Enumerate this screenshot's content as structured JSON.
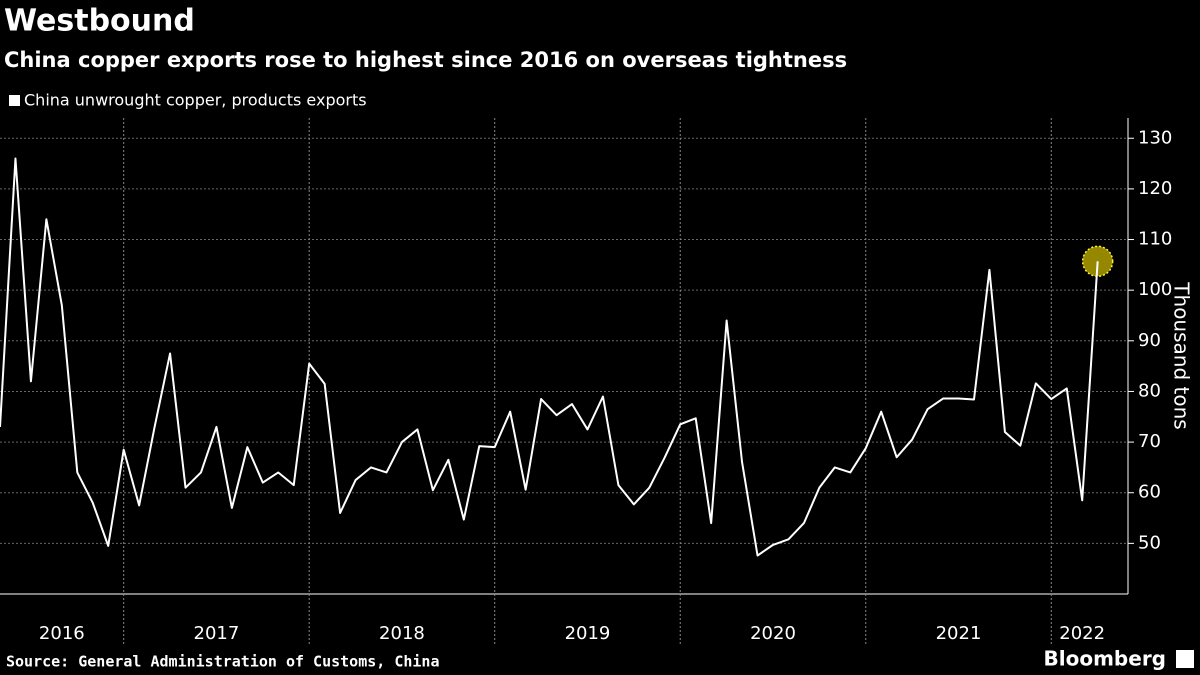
{
  "chart_data": {
    "type": "line",
    "title": "Westbound",
    "subtitle": "China copper exports rose to highest since 2016 on overseas tightness",
    "y_label": "Thousand tons",
    "source": "Source: General Administration of Customs, China",
    "brand": "Bloomberg",
    "categories": [
      null,
      null,
      null,
      null,
      "2016",
      null,
      null,
      null,
      null,
      null,
      null,
      null,
      null,
      null,
      "2017",
      null,
      null,
      null,
      null,
      null,
      null,
      null,
      null,
      null,
      null,
      null,
      "2018",
      null,
      null,
      null,
      null,
      null,
      null,
      null,
      null,
      null,
      null,
      null,
      "2019",
      null,
      null,
      null,
      null,
      null,
      null,
      null,
      null,
      null,
      null,
      null,
      "2020",
      null,
      null,
      null,
      null,
      null,
      null,
      null,
      null,
      null,
      null,
      null,
      "2021",
      null,
      null,
      null,
      null,
      null,
      null,
      null,
      "2022",
      null
    ],
    "series": [
      {
        "name": "China unwrought copper, products exports",
        "color": "#ffffff",
        "values": [
          73,
          126,
          82,
          114,
          97,
          64,
          58,
          49.5,
          68.5,
          57.5,
          73,
          87.5,
          61,
          64,
          73,
          57,
          69,
          62,
          64,
          61.5,
          85.5,
          81.5,
          56,
          62.5,
          65,
          64,
          70,
          72.5,
          60.5,
          66.5,
          54.7,
          69.2,
          69,
          76,
          60.6,
          78.5,
          75.3,
          77.5,
          72.5,
          79,
          61.5,
          57.7,
          61,
          67,
          73.5,
          74.7,
          54,
          94,
          66,
          47.6,
          49.7,
          50.8,
          54,
          61,
          65,
          64,
          68.8,
          76,
          67,
          70.5,
          76.5,
          78.6,
          78.6,
          78.4,
          104,
          72,
          69.3,
          81.6,
          78.5,
          80.6,
          58.5,
          105.7
        ]
      }
    ],
    "ylim": [
      40,
      134
    ],
    "yticks": [
      50,
      60,
      70,
      80,
      90,
      100,
      110,
      120,
      130
    ],
    "grid": true,
    "highlight_color": "#c8b400"
  }
}
